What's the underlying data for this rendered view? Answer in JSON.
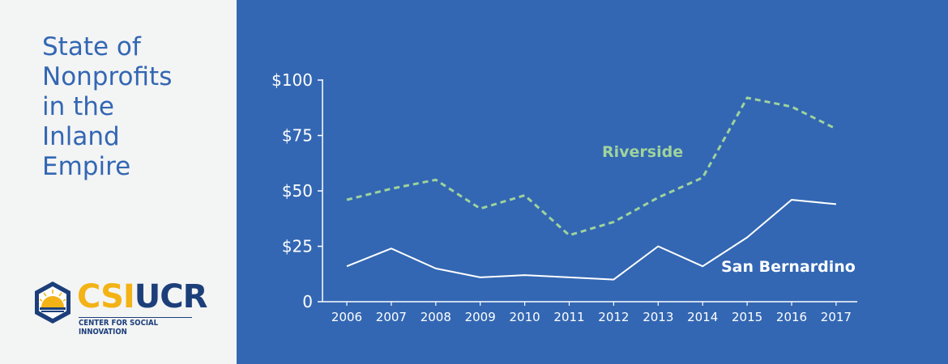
{
  "title_lines": [
    "State of",
    "Nonprofits",
    "in the",
    "Inland",
    "Empire"
  ],
  "logo": {
    "csi": "CSI",
    "ucr": "UCR",
    "subtitle": "CENTER FOR SOCIAL INNOVATION"
  },
  "colors": {
    "background_left": "#f3f4f4",
    "chart_bg": "#3367b3",
    "title": "#3367b3",
    "riverside": "#9fd39c",
    "san_bernardino": "#ffffff",
    "logo_gold": "#f3b316",
    "logo_navy": "#1c3f7a"
  },
  "chart_data": {
    "type": "line",
    "x": [
      "2006",
      "2007",
      "2008",
      "2009",
      "2010",
      "2011",
      "2012",
      "2013",
      "2014",
      "2015",
      "2016",
      "2017"
    ],
    "ylim": [
      0,
      100
    ],
    "yticks": [
      0,
      25,
      50,
      75,
      100
    ],
    "ytick_labels": [
      "0",
      "$25",
      "$50",
      "$75",
      "$100"
    ],
    "grid": false,
    "series": [
      {
        "name": "Riverside",
        "style": "dashed",
        "values": [
          46,
          51,
          55,
          42,
          48,
          30,
          36,
          47,
          56,
          92,
          88,
          78
        ]
      },
      {
        "name": "San Bernardino",
        "style": "solid",
        "values": [
          16,
          24,
          15,
          11,
          12,
          11,
          10,
          25,
          16,
          29,
          46,
          44
        ]
      }
    ]
  }
}
